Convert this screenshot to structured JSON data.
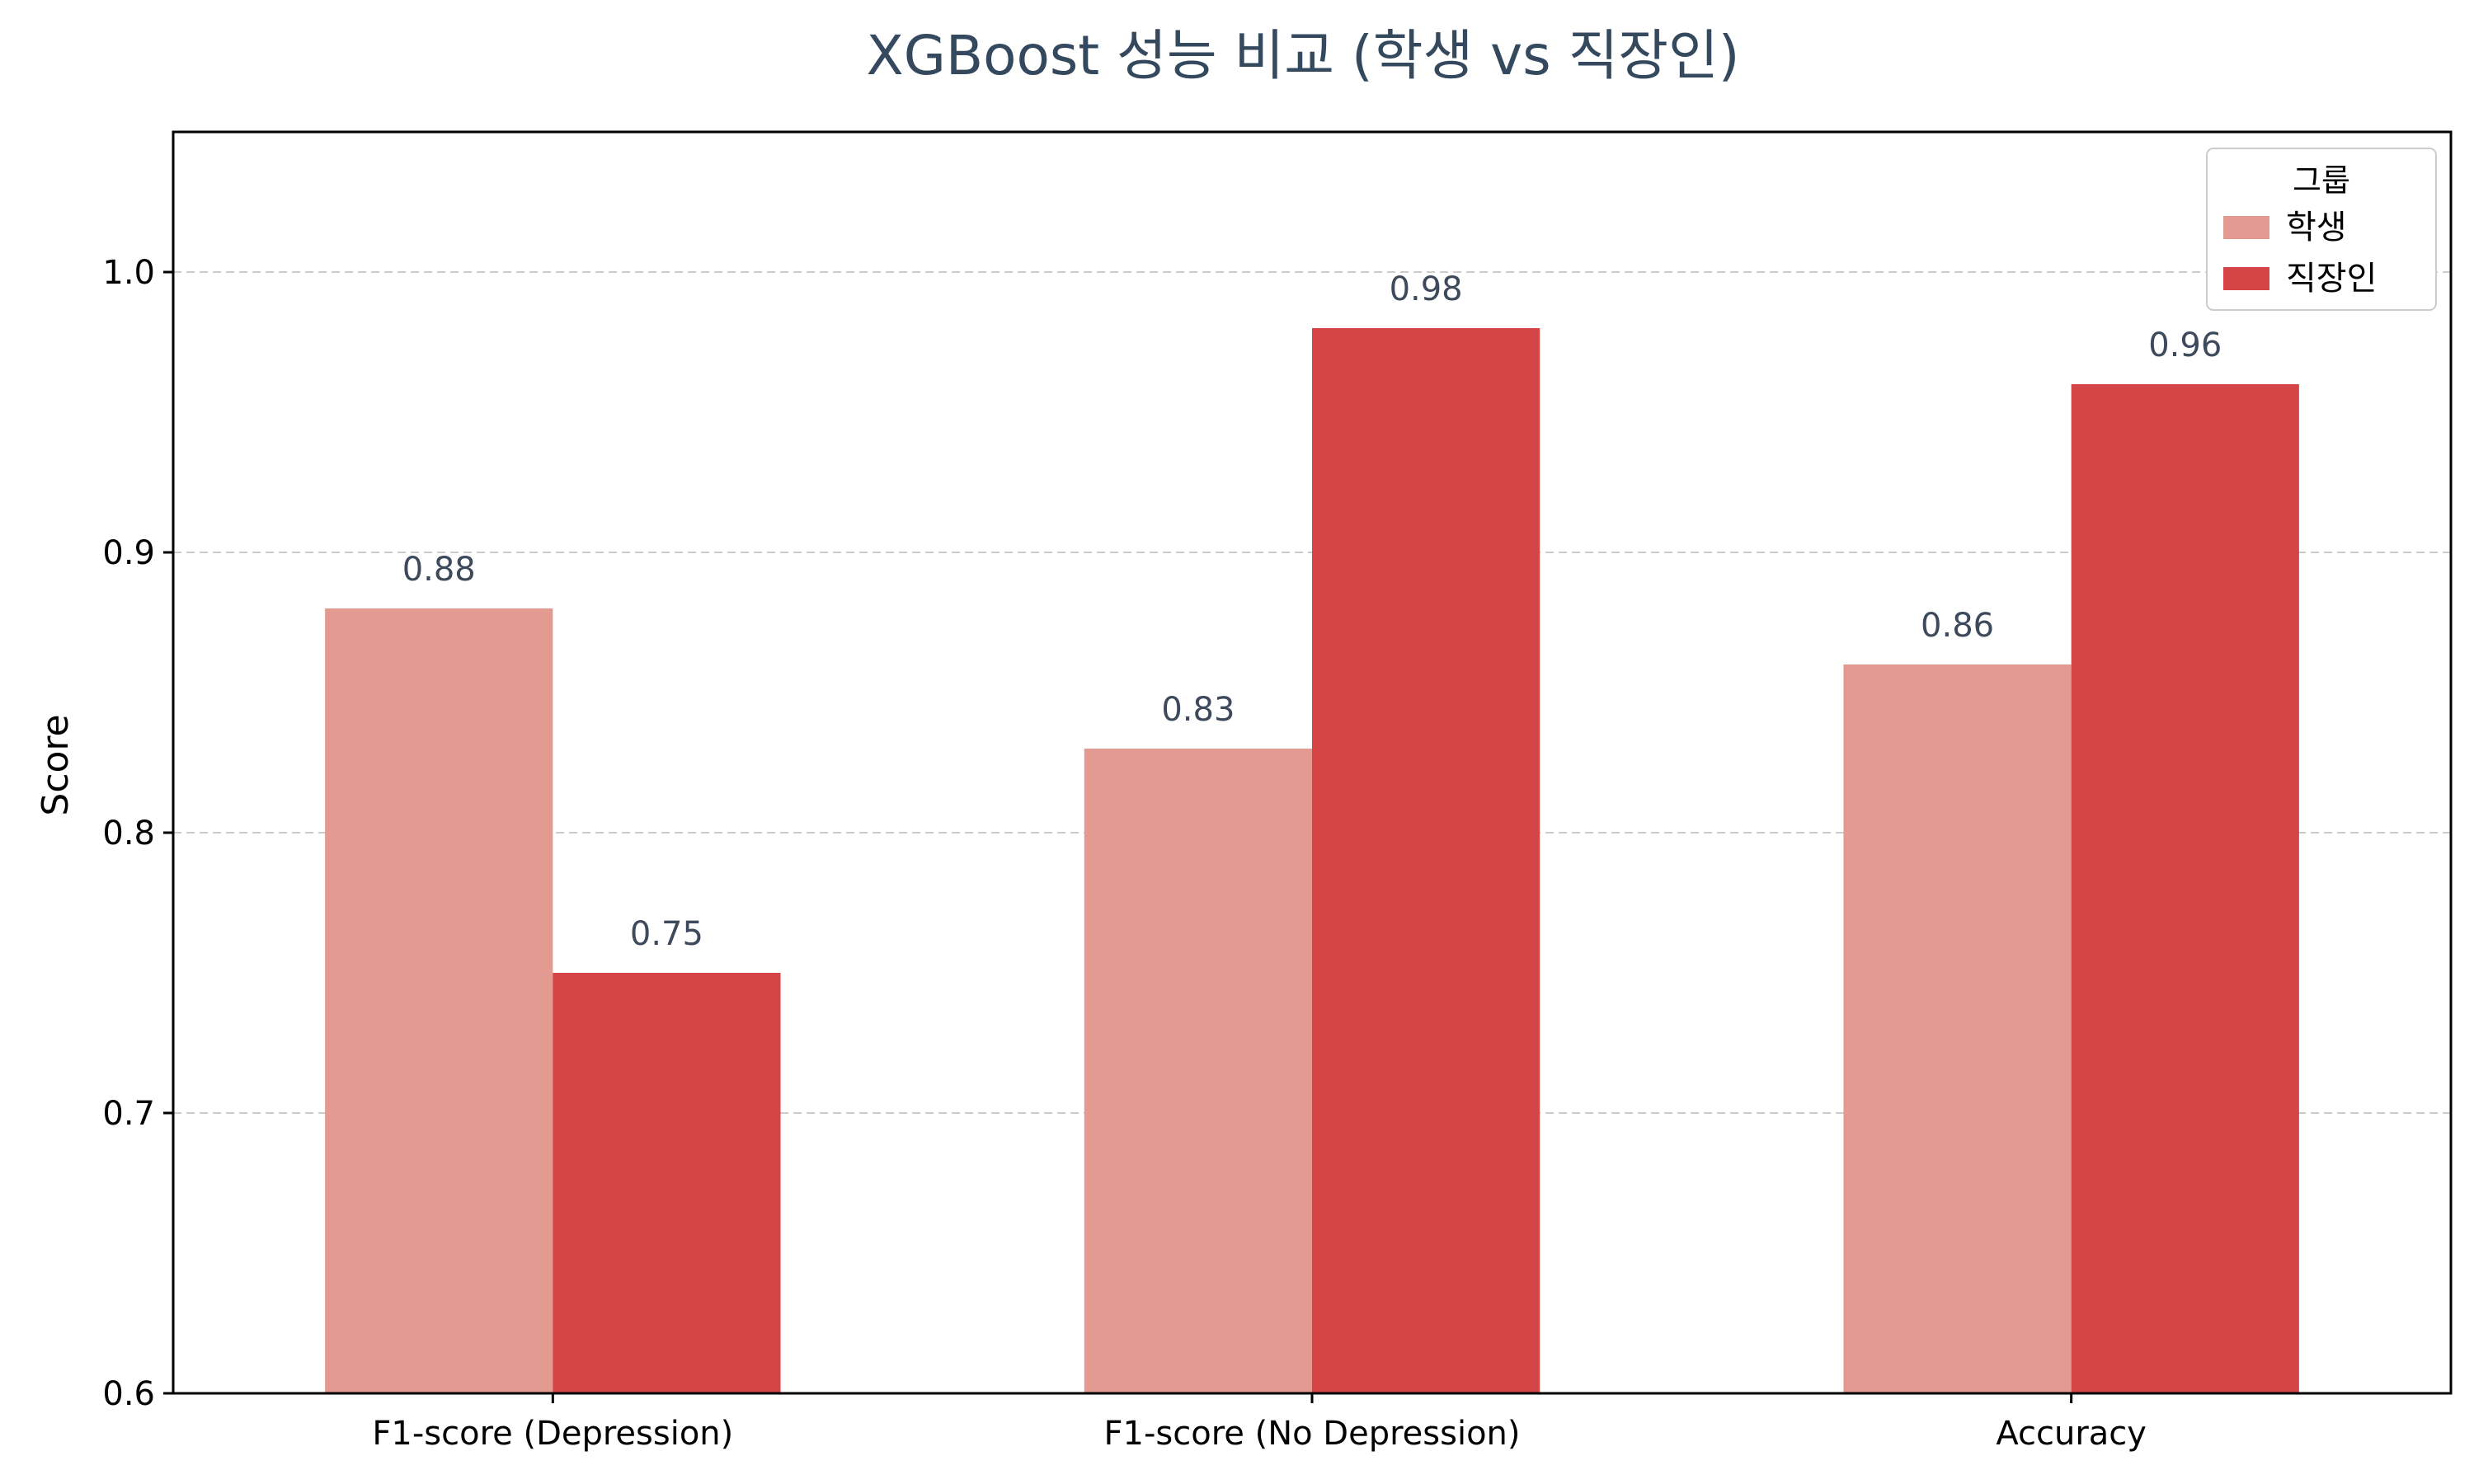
{
  "chart_data": {
    "type": "bar",
    "title": "XGBoost 성능 비교 (학생 vs 직장인)",
    "xlabel": "",
    "ylabel": "Score",
    "categories": [
      "F1-score (Depression)",
      "F1-score (No Depression)",
      "Accuracy"
    ],
    "series": [
      {
        "name": "학생",
        "values": [
          0.88,
          0.83,
          0.86
        ],
        "labels": [
          "0.88",
          "0.83",
          "0.86"
        ],
        "color": "#e29a91"
      },
      {
        "name": "직장인",
        "values": [
          0.75,
          0.98,
          0.96
        ],
        "labels": [
          "0.75",
          "0.98",
          "0.96"
        ],
        "color": "#d64545"
      }
    ],
    "ylim": [
      0.6,
      1.05
    ],
    "yticks": [
      0.6,
      0.7,
      0.8,
      0.9,
      1.0
    ],
    "ytick_labels": [
      "0.6",
      "0.7",
      "0.8",
      "0.9",
      "1.0"
    ],
    "grid": true,
    "legend": {
      "title": "그룹",
      "placement": "top-right"
    },
    "colors": {
      "title": "#34495e",
      "value_label": "#3d4a5c",
      "grid": "#cccccc"
    }
  }
}
